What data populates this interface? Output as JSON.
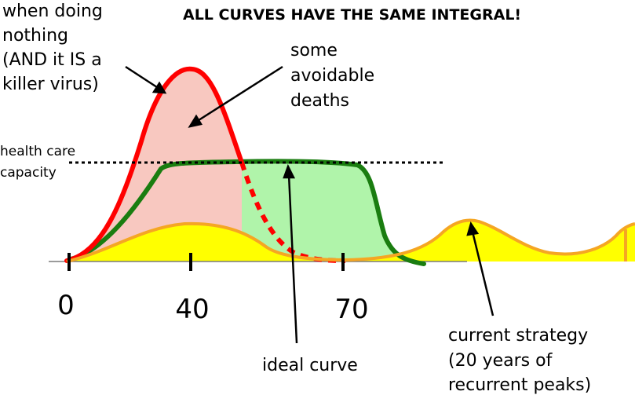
{
  "title": "ALL CURVES HAVE THE SAME INTEGRAL!",
  "labels": {
    "doing_nothing": [
      "when doing",
      "nothing",
      "(AND it IS a",
      "killer virus)"
    ],
    "avoidable_deaths": [
      "some",
      "avoidable",
      "deaths"
    ],
    "capacity": [
      "health care",
      "capacity"
    ],
    "ideal_curve": "ideal curve",
    "current_strategy": [
      "current strategy",
      "(20 years of",
      "recurrent peaks)"
    ]
  },
  "x_ticks": [
    "0",
    "40",
    "70"
  ],
  "colors": {
    "red_line": "#ff0000",
    "red_fill": "#f8c8c0",
    "green_line": "#1a7d10",
    "green_fill": "#b0f4aa",
    "yellow_fill": "#ffff00",
    "orange_line": "#f5a623",
    "dotted_line": "#000000"
  }
}
